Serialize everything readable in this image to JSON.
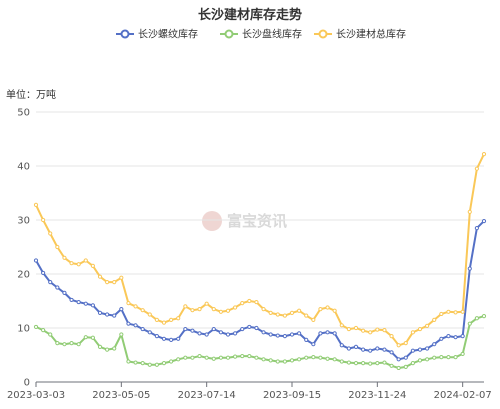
{
  "chart_data": {
    "type": "line",
    "title": "长沙建材库存走势",
    "unit_label": "单位：万吨",
    "watermark": "富宝资讯",
    "ylim": [
      0,
      50
    ],
    "y_ticks": [
      0,
      10,
      20,
      30,
      40,
      50
    ],
    "x_ticks": [
      "2023-03-03",
      "2023-05-05",
      "2023-07-14",
      "2023-09-15",
      "2023-11-24",
      "2024-02-07"
    ],
    "x_tick_index": [
      0,
      12,
      24,
      36,
      48,
      60
    ],
    "grid": true,
    "legend_position": "top-center",
    "series": [
      {
        "name": "长沙螺纹库存",
        "color": "#5470c6",
        "values": [
          22.5,
          20.2,
          18.5,
          17.5,
          16.5,
          15.2,
          14.8,
          14.5,
          14.2,
          12.8,
          12.5,
          12.3,
          13.5,
          10.8,
          10.5,
          9.8,
          9.2,
          8.5,
          8.0,
          7.8,
          8.0,
          9.8,
          9.5,
          9.0,
          8.8,
          9.8,
          9.2,
          8.8,
          9.0,
          9.8,
          10.2,
          10.0,
          9.2,
          8.8,
          8.6,
          8.5,
          8.8,
          9.0,
          7.8,
          7.0,
          9.0,
          9.2,
          9.0,
          6.8,
          6.2,
          6.5,
          6.0,
          5.8,
          6.2,
          6.0,
          5.5,
          4.2,
          4.5,
          5.8,
          6.0,
          6.2,
          7.0,
          8.0,
          8.5,
          8.3,
          8.5,
          21.0,
          28.5,
          29.8
        ]
      },
      {
        "name": "长沙盘线库存",
        "color": "#91cc75",
        "values": [
          10.2,
          9.6,
          8.8,
          7.2,
          7.0,
          7.2,
          7.0,
          8.3,
          8.2,
          6.5,
          6.0,
          6.2,
          8.8,
          3.8,
          3.6,
          3.5,
          3.2,
          3.2,
          3.5,
          3.8,
          4.2,
          4.5,
          4.5,
          4.8,
          4.5,
          4.3,
          4.5,
          4.5,
          4.7,
          4.8,
          4.8,
          4.5,
          4.2,
          4.0,
          3.8,
          3.8,
          4.0,
          4.2,
          4.5,
          4.6,
          4.5,
          4.3,
          4.2,
          3.8,
          3.6,
          3.5,
          3.5,
          3.4,
          3.5,
          3.6,
          3.0,
          2.6,
          2.8,
          3.5,
          4.0,
          4.2,
          4.5,
          4.6,
          4.6,
          4.6,
          5.2,
          10.8,
          11.8,
          12.2
        ]
      },
      {
        "name": "长沙建材总库存",
        "color": "#fac858",
        "values": [
          32.8,
          30.0,
          27.5,
          25.0,
          23.0,
          22.0,
          21.8,
          22.5,
          21.5,
          19.5,
          18.5,
          18.5,
          19.3,
          14.6,
          14.0,
          13.3,
          12.5,
          11.5,
          11.0,
          11.5,
          11.8,
          14.0,
          13.3,
          13.5,
          14.5,
          13.5,
          13.0,
          13.2,
          13.8,
          14.6,
          15.0,
          14.8,
          13.5,
          12.8,
          12.5,
          12.3,
          12.8,
          13.2,
          12.3,
          11.5,
          13.5,
          13.8,
          13.2,
          10.5,
          9.8,
          10.0,
          9.5,
          9.2,
          9.7,
          9.6,
          8.5,
          6.8,
          7.2,
          9.2,
          9.8,
          10.4,
          11.5,
          12.6,
          13.0,
          12.9,
          13.0,
          31.5,
          39.5,
          42.2
        ]
      }
    ]
  }
}
